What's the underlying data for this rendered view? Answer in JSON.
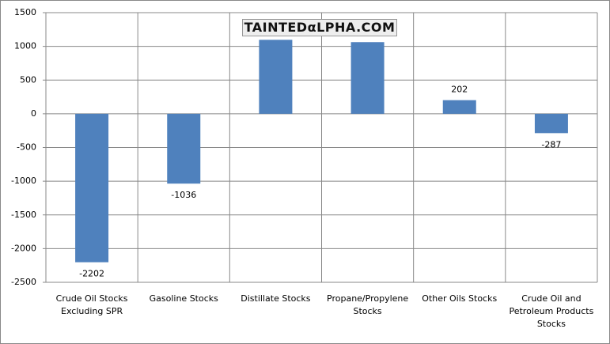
{
  "chart_data": {
    "type": "bar",
    "watermark": "TAINTEDαLPHA.COM",
    "categories": [
      "Crude Oil Stocks Excluding SPR",
      "Gasoline Stocks",
      "Distillate Stocks",
      "Propane/Propylene Stocks",
      "Other Oils Stocks",
      "Crude Oil and Petroleum Products Stocks"
    ],
    "values": [
      -2202,
      -1036,
      1097,
      1063,
      202,
      -287
    ],
    "value_labels": [
      "-2202",
      "-1036",
      null,
      null,
      "202",
      "-287"
    ],
    "color": "#4f81bd",
    "ylim": [
      -2500,
      1500
    ],
    "yticks": [
      -2500,
      -2000,
      -1500,
      -1000,
      -500,
      0,
      500,
      1000,
      1500
    ],
    "grid": true
  }
}
